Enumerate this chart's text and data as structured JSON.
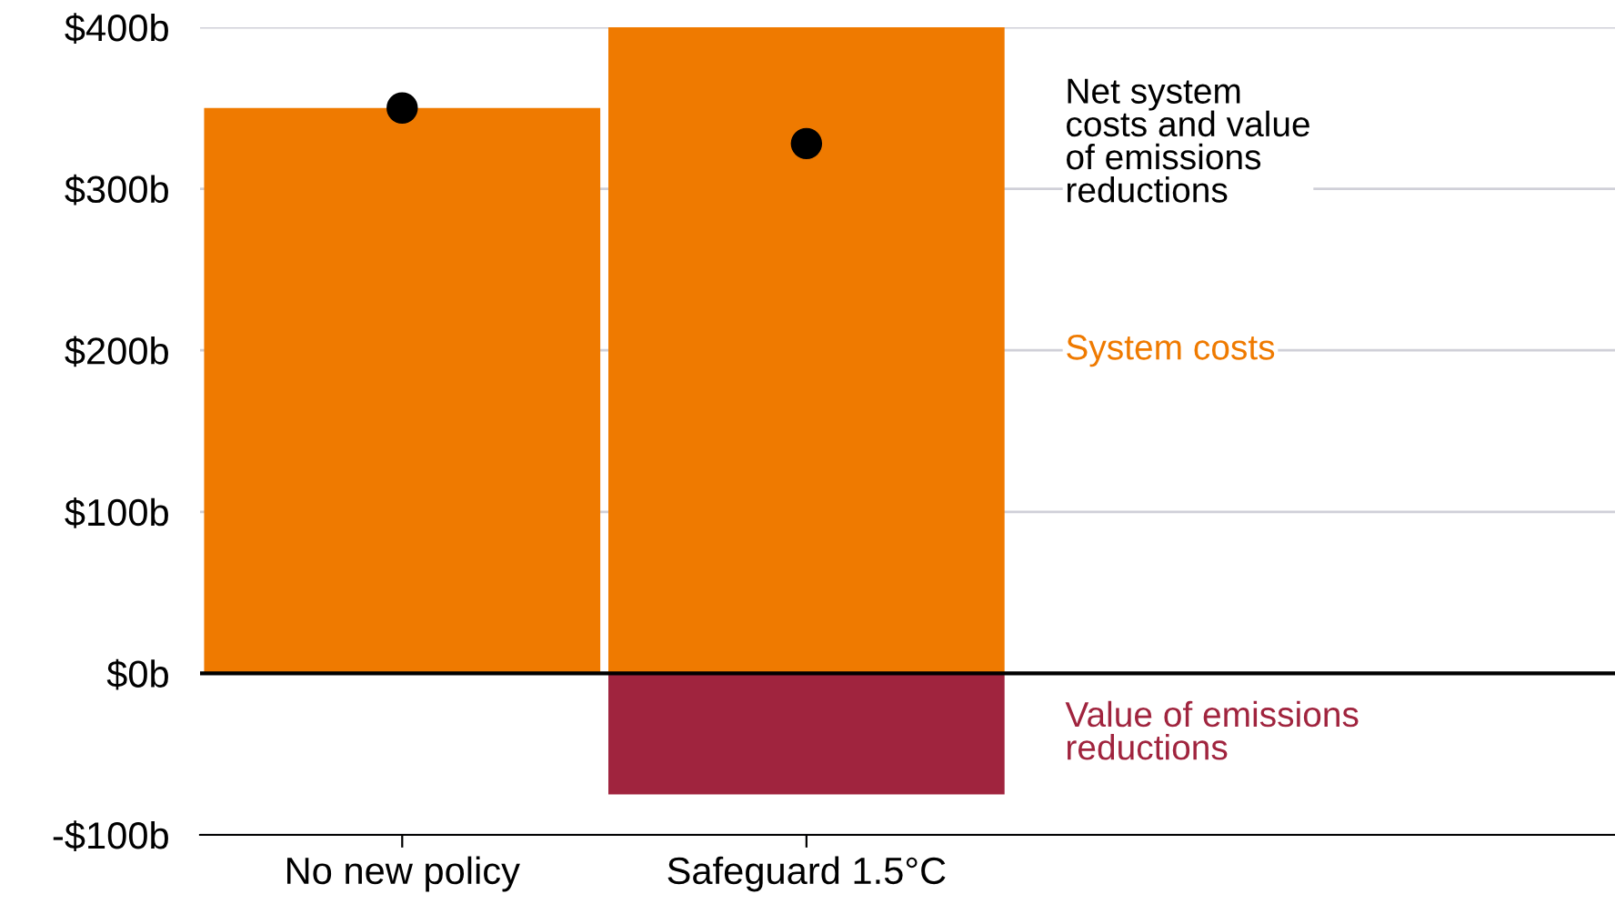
{
  "chart_data": {
    "type": "bar",
    "stacked": true,
    "categories": [
      "No new policy",
      "Safeguard 1.5°C"
    ],
    "series": [
      {
        "name": "System costs",
        "color": "#ef7a00",
        "values": [
          350,
          400
        ]
      },
      {
        "name": "Value of emissions\nreductions",
        "color": "#a0243e",
        "values": [
          null,
          -75
        ]
      },
      {
        "name": "Net system\ncosts and value\nof emissions\nreductions",
        "type": "scatter",
        "color": "#000000",
        "values": [
          350,
          328
        ]
      }
    ],
    "ylim": [
      -100,
      400
    ],
    "yticks": [
      {
        "value": -100,
        "label": "-$100b"
      },
      {
        "value": 0,
        "label": "$0b"
      },
      {
        "value": 100,
        "label": "$100b"
      },
      {
        "value": 200,
        "label": "$200b"
      },
      {
        "value": 300,
        "label": "$300b"
      },
      {
        "value": 400,
        "label": "$400b"
      }
    ],
    "grid": "y",
    "legend": false,
    "marker": "circle",
    "ref_lines": [
      {
        "axis": "y",
        "value": 0,
        "color": "#000000"
      }
    ]
  }
}
